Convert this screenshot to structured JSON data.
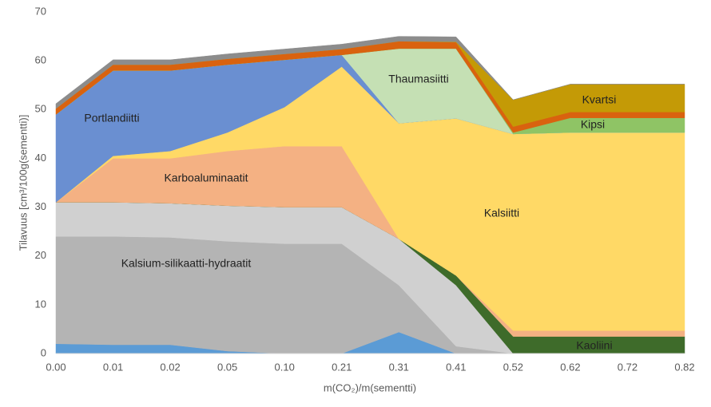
{
  "chart_data": {
    "type": "stacked_area",
    "x_label": "m(CO₂)/m(sementti)",
    "y_label": "Tilavuus [cm³/100g(sementti)]",
    "categories": [
      "0.00",
      "0.01",
      "0.02",
      "0.05",
      "0.10",
      "0.21",
      "0.31",
      "0.41",
      "0.52",
      "0.62",
      "0.72",
      "0.82"
    ],
    "ylim": [
      0,
      70
    ],
    "yticks": [
      0,
      10,
      20,
      30,
      40,
      50,
      60,
      70
    ],
    "grid": false,
    "series": [
      {
        "color": "#5b9bd5",
        "values": [
          2,
          1.8,
          1.8,
          0.5,
          0,
          0,
          4.4,
          0,
          0,
          0,
          0,
          0
        ]
      },
      {
        "name": "Kalsium-silikaatti-hydraatit",
        "color": "#b4b4b4",
        "values": [
          22,
          22.2,
          22,
          22.5,
          22.5,
          22.5,
          9.6,
          1.5,
          0,
          0,
          0,
          0
        ]
      },
      {
        "color": "#d0d0d0",
        "values": [
          7,
          7,
          7,
          7.3,
          7.5,
          7.5,
          9.5,
          12.5,
          0,
          0,
          0,
          0
        ]
      },
      {
        "name": "Kaoliini",
        "color": "#3e6b2a",
        "values": [
          0,
          0,
          0,
          0,
          0,
          0,
          0,
          2,
          3.5,
          3.5,
          3.5,
          3.5
        ]
      },
      {
        "name": "Karboaluminaatit",
        "color": "#f4b183",
        "values": [
          0,
          9,
          9.2,
          11.2,
          12.5,
          12.5,
          0,
          0,
          1.2,
          1.2,
          1.2,
          1.2
        ]
      },
      {
        "name": "Kalsiitti",
        "color": "#ffd966",
        "values": [
          0,
          0.5,
          1.5,
          3.8,
          8,
          16.3,
          23.7,
          32.2,
          40.3,
          40.6,
          40.6,
          40.6
        ]
      },
      {
        "name": "Portlandiitti",
        "color": "#6a8fd1",
        "values": [
          18,
          17.5,
          16.5,
          13.9,
          9.7,
          2.4,
          0,
          0,
          0,
          0,
          0,
          0
        ]
      },
      {
        "name": "Thaumasiitti",
        "color": "#c5e0b4",
        "values": [
          0,
          0,
          0,
          0,
          0,
          0,
          15.3,
          14.3,
          0,
          0,
          0,
          0
        ]
      },
      {
        "name": "Kipsi",
        "color": "#8fc465",
        "values": [
          0,
          0,
          0,
          0,
          0,
          0,
          0,
          0,
          0.3,
          3,
          3,
          3
        ]
      },
      {
        "color": "#d9620f",
        "values": [
          1.2,
          1.2,
          1.2,
          1.2,
          1.2,
          1.2,
          1.5,
          1.3,
          1.2,
          1.2,
          1.2,
          1.2
        ]
      },
      {
        "name": "Kvartsi",
        "color": "#c49a06",
        "values": [
          0,
          0,
          0,
          0,
          0,
          0,
          0,
          0.1,
          5.5,
          5.7,
          5.7,
          5.7
        ]
      },
      {
        "color": "#8c8c8c",
        "values": [
          1,
          1,
          1,
          1,
          1,
          1,
          1,
          1,
          0,
          0,
          0,
          0
        ]
      }
    ]
  }
}
